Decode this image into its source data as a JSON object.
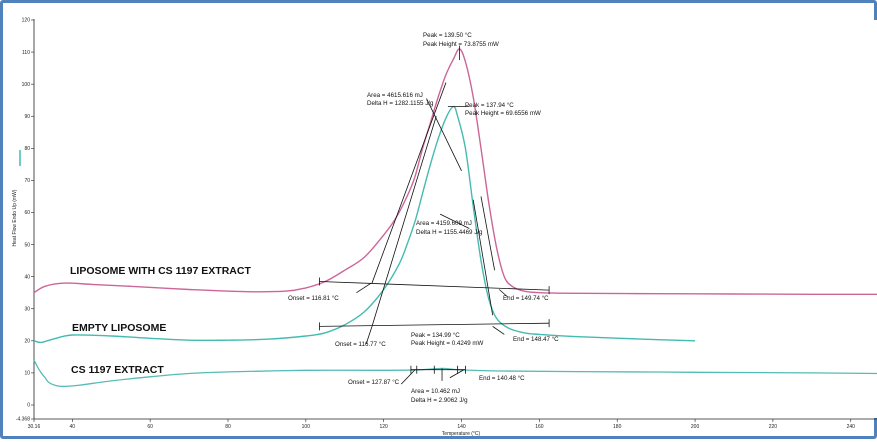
{
  "chart_data": {
    "type": "line",
    "xlabel": "Temperature (°C)",
    "ylabel": "Heat Flow Endo Up (mW)",
    "xlim": [
      30.16,
      247
    ],
    "ylim": [
      -4.368,
      120
    ],
    "x_ticks": [
      "30.16",
      "40",
      "60",
      "80",
      "100",
      "120",
      "140",
      "160",
      "180",
      "200",
      "220",
      "240"
    ],
    "y_ticks": [
      "-4.368",
      "0",
      "10",
      "20",
      "30",
      "40",
      "50",
      "60",
      "70",
      "80",
      "90",
      "100",
      "110",
      "120"
    ],
    "grid": false,
    "series": [
      {
        "name": "LIPOSOME WITH CS 1197 EXTRACT",
        "color": "#cc6699",
        "x": [
          30.16,
          33,
          38,
          45,
          55,
          70,
          85,
          95,
          100,
          105,
          110,
          115,
          120,
          123,
          126,
          128,
          130,
          132,
          134,
          136,
          138,
          139.5,
          141,
          143,
          145,
          147,
          149,
          151,
          153,
          156,
          160,
          170,
          190,
          210,
          230,
          247
        ],
        "y": [
          35,
          37,
          38,
          37.6,
          37,
          36,
          35.3,
          35.5,
          36.5,
          38.5,
          42,
          46,
          53,
          58,
          65,
          71,
          80,
          88,
          96,
          103,
          108,
          111,
          107,
          96,
          80,
          63,
          49,
          40,
          37,
          35.5,
          35,
          34.8,
          34.7,
          34.6,
          34.5,
          34.5
        ]
      },
      {
        "name": "EMPTY LIPOSOME",
        "color": "#44bbb0",
        "x": [
          30.16,
          32,
          35,
          40,
          50,
          60,
          70,
          80,
          90,
          100,
          105,
          110,
          115,
          120,
          124,
          126,
          128,
          130,
          132,
          134,
          136,
          137.94,
          139,
          141,
          143,
          145,
          147,
          149,
          152,
          156,
          160,
          170,
          185,
          200
        ],
        "y": [
          20,
          19.5,
          20.5,
          21.8,
          21.5,
          20.8,
          20.2,
          20.2,
          20.5,
          21.5,
          22.5,
          25,
          29,
          36,
          44,
          50,
          57,
          66,
          75,
          83,
          89.5,
          93,
          90,
          80,
          62,
          45,
          33,
          27,
          24,
          22.5,
          22,
          21.3,
          20.6,
          20
        ]
      },
      {
        "name": "CS 1197 EXTRACT",
        "color": "#55bbb5",
        "x": [
          30.16,
          31,
          32,
          33,
          34,
          36,
          38,
          42,
          50,
          60,
          70,
          80,
          100,
          120,
          127.87,
          130,
          134.99,
          138,
          140.48,
          150,
          170,
          200,
          230,
          247
        ],
        "y": [
          14,
          12,
          10,
          8.5,
          7,
          6,
          5.8,
          6.2,
          7.5,
          8.8,
          9.8,
          10.3,
          10.8,
          10.8,
          10.9,
          11,
          11.4,
          11.1,
          10.9,
          10.6,
          10.4,
          10.2,
          10,
          9.8
        ]
      }
    ],
    "annotations": {
      "lipo_cs_peak": [
        "Peak = 139.50 °C",
        "Peak Height = 73.8755 mW"
      ],
      "lipo_cs_area": [
        "Area = 4615.616 mJ",
        "Delta H = 1282.1155 J/g"
      ],
      "lipo_cs_onset": "Onset = 116.81 °C",
      "lipo_cs_end": "End = 149.74 °C",
      "empty_peak": [
        "Peak = 137.94 °C",
        "Peak Height = 69.6556 mW"
      ],
      "empty_area": [
        "Area = 4159.609 mJ",
        "Delta H = 1155.4469 J/g"
      ],
      "empty_onset": "Onset = 116.77 °C",
      "empty_end": "End = 148.47 °C",
      "cs_peak": [
        "Peak = 134.99 °C",
        "Peak Height = 0.4249 mW"
      ],
      "cs_area": [
        "Area = 10.462 mJ",
        "Delta H = 2.9062 J/g"
      ],
      "cs_onset": "Onset = 127.87 °C",
      "cs_end": "End = 140.48 °C"
    }
  }
}
